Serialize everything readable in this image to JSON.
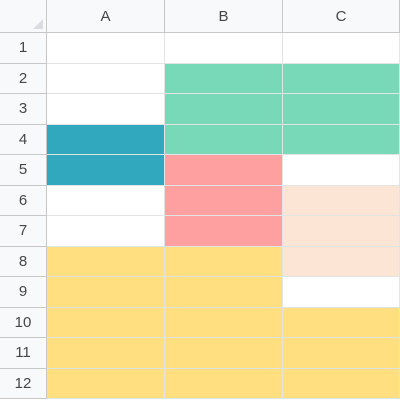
{
  "columns": [
    "A",
    "B",
    "C"
  ],
  "rows": [
    "1",
    "2",
    "3",
    "4",
    "5",
    "6",
    "7",
    "8",
    "9",
    "10",
    "11",
    "12"
  ],
  "colors": {
    "header_bg": "#f8f9fa",
    "grid_line": "#e2e3e3",
    "header_line": "#c7c7c7",
    "empty": "#ffffff",
    "teal": "#31a8bd",
    "green": "#78d9b8",
    "red": "#ffa0a0",
    "peach": "#fde5d6",
    "yellow": "#ffdf80"
  },
  "cell_fills": [
    [
      "empty",
      "empty",
      "empty"
    ],
    [
      "empty",
      "green",
      "green"
    ],
    [
      "empty",
      "green",
      "green"
    ],
    [
      "teal",
      "green",
      "green"
    ],
    [
      "teal",
      "red",
      "empty"
    ],
    [
      "empty",
      "red",
      "peach"
    ],
    [
      "empty",
      "red",
      "peach"
    ],
    [
      "yellow",
      "yellow",
      "peach"
    ],
    [
      "yellow",
      "yellow",
      "empty"
    ],
    [
      "yellow",
      "yellow",
      "yellow"
    ],
    [
      "yellow",
      "yellow",
      "yellow"
    ],
    [
      "yellow",
      "yellow",
      "yellow"
    ]
  ]
}
